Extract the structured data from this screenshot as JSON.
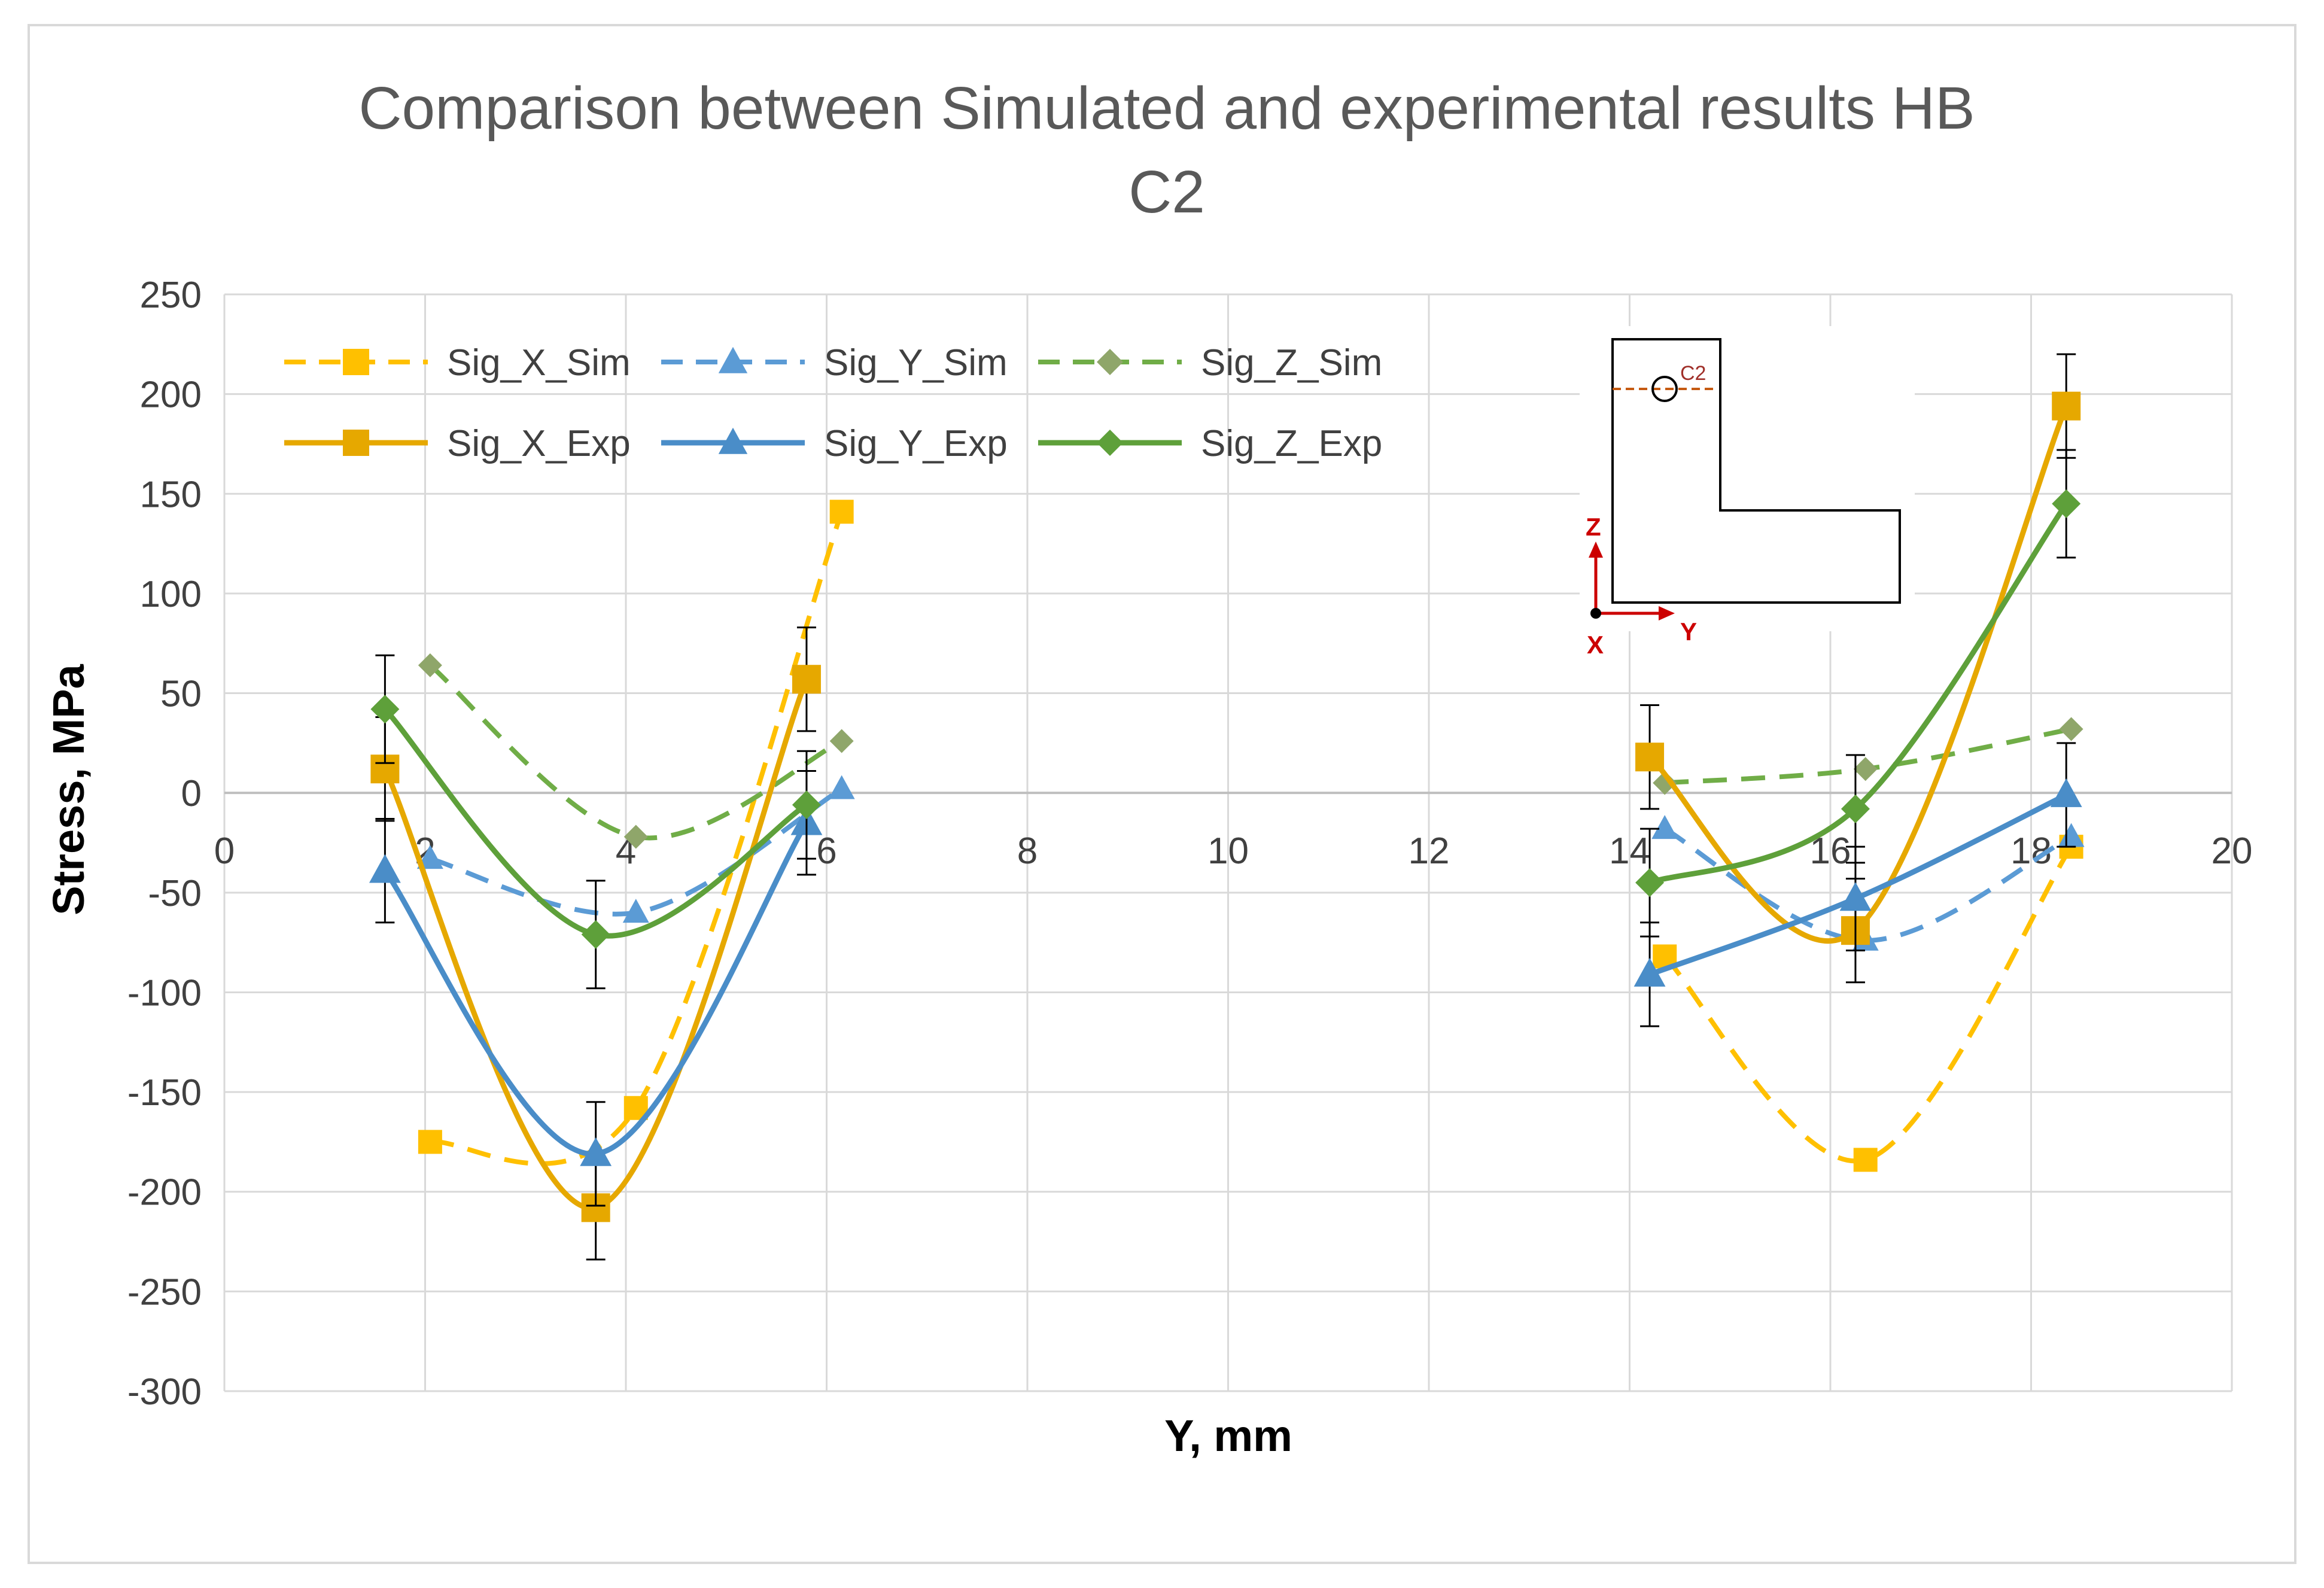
{
  "chart_data": {
    "type": "line",
    "title": "Comparison between Simulated and experimental results HB",
    "title_line2": "C2",
    "xlabel": "Y, mm",
    "ylabel": "Stress, MPa",
    "xlim": [
      0,
      20
    ],
    "ylim": [
      -300,
      250
    ],
    "x_ticks": [
      0,
      2,
      4,
      6,
      8,
      10,
      12,
      14,
      16,
      18,
      20
    ],
    "y_ticks": [
      250,
      200,
      150,
      100,
      50,
      0,
      -50,
      -100,
      -150,
      -200,
      -250,
      -300
    ],
    "grid": true,
    "legend_position": "top-left",
    "series": [
      {
        "name": "Sig_X_Sim",
        "color": "#FFC000",
        "style": "dashed",
        "marker": "square",
        "groups": [
          [
            [
              2.05,
              -175
            ],
            [
              4.1,
              -158
            ],
            [
              6.15,
              141
            ]
          ],
          [
            [
              14.35,
              -82
            ],
            [
              16.35,
              -184
            ],
            [
              18.4,
              -27
            ]
          ]
        ]
      },
      {
        "name": "Sig_Y_Sim",
        "color": "#5B9BD5",
        "style": "dashed",
        "marker": "triangle",
        "groups": [
          [
            [
              2.05,
              -33
            ],
            [
              4.1,
              -60
            ],
            [
              6.15,
              2
            ]
          ],
          [
            [
              14.35,
              -18
            ],
            [
              16.35,
              -74
            ],
            [
              18.4,
              -22
            ]
          ]
        ]
      },
      {
        "name": "Sig_Z_Sim",
        "color": "#70AD47",
        "style": "dashed",
        "marker": "diamond",
        "groups": [
          [
            [
              2.05,
              64
            ],
            [
              4.1,
              -22
            ],
            [
              6.15,
              26
            ]
          ],
          [
            [
              14.35,
              5
            ],
            [
              16.35,
              12
            ],
            [
              18.4,
              32
            ]
          ]
        ]
      },
      {
        "name": "Sig_X_Exp",
        "color": "#E6A800",
        "style": "solid",
        "marker": "square",
        "error": 26,
        "groups": [
          [
            [
              1.6,
              12
            ],
            [
              3.7,
              -208
            ],
            [
              5.8,
              57
            ]
          ],
          [
            [
              14.2,
              18
            ],
            [
              16.25,
              -69
            ],
            [
              18.35,
              194
            ]
          ]
        ]
      },
      {
        "name": "Sig_Y_Exp",
        "color": "#4A8DC8",
        "style": "solid",
        "marker": "triangle",
        "error": 26,
        "groups": [
          [
            [
              1.6,
              -39
            ],
            [
              3.7,
              -181
            ],
            [
              5.8,
              -15
            ]
          ],
          [
            [
              14.2,
              -91
            ],
            [
              16.25,
              -53
            ],
            [
              18.35,
              -1
            ]
          ]
        ]
      },
      {
        "name": "Sig_Z_Exp",
        "color": "#5EA03A",
        "style": "solid",
        "marker": "diamond",
        "error": 27,
        "groups": [
          [
            [
              1.6,
              42
            ],
            [
              3.7,
              -71
            ],
            [
              5.8,
              -6
            ]
          ],
          [
            [
              14.2,
              -45
            ],
            [
              16.25,
              -8
            ],
            [
              18.35,
              145
            ]
          ]
        ]
      }
    ],
    "inset": {
      "label_point": "C2",
      "axis_vertical": "Z",
      "axis_horizontal": "Y",
      "axis_out": "X",
      "axis_color": "#CC0000",
      "section_line_color": "#C55A11"
    }
  }
}
